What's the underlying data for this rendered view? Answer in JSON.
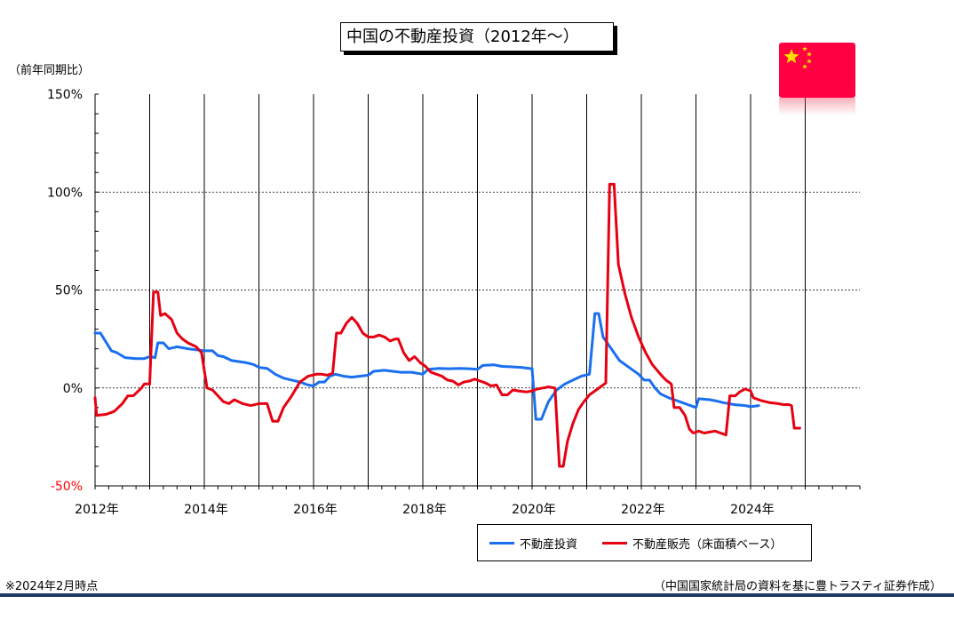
{
  "chart_data": {
    "type": "line",
    "title": "中国の不動産投資（2012年～）",
    "ylabel": "（前年同期比）",
    "ylim": [
      -50,
      150
    ],
    "yticks": [
      {
        "v": 150,
        "label": "150%"
      },
      {
        "v": 100,
        "label": "100%"
      },
      {
        "v": 50,
        "label": "50%"
      },
      {
        "v": 0,
        "label": "0%"
      },
      {
        "v": -50,
        "label": "-50%"
      }
    ],
    "negative_tick_color": "#ff0000",
    "xlim": [
      2012,
      2026
    ],
    "xticks": [
      {
        "v": 2012,
        "label": "2012年"
      },
      {
        "v": 2014,
        "label": "2014年"
      },
      {
        "v": 2016,
        "label": "2016年"
      },
      {
        "v": 2018,
        "label": "2018年"
      },
      {
        "v": 2020,
        "label": "2020年"
      },
      {
        "v": 2022,
        "label": "2022年"
      },
      {
        "v": 2024,
        "label": "2024年"
      }
    ],
    "grid": true,
    "legend_position": "bottom-right",
    "series": [
      {
        "name": "不動産投資",
        "color": "#1a6ff0",
        "points": [
          [
            2012.0,
            28
          ],
          [
            2012.1,
            28
          ],
          [
            2012.3,
            19
          ],
          [
            2012.4,
            18
          ],
          [
            2012.55,
            15.5
          ],
          [
            2012.75,
            15
          ],
          [
            2012.9,
            15
          ],
          [
            2013.0,
            16
          ],
          [
            2013.1,
            15.5
          ],
          [
            2013.15,
            23
          ],
          [
            2013.25,
            23
          ],
          [
            2013.35,
            20
          ],
          [
            2013.5,
            21
          ],
          [
            2013.7,
            20
          ],
          [
            2013.85,
            19.5
          ],
          [
            2014.0,
            19
          ],
          [
            2014.15,
            19
          ],
          [
            2014.25,
            16.5
          ],
          [
            2014.35,
            16
          ],
          [
            2014.5,
            14
          ],
          [
            2014.75,
            13
          ],
          [
            2014.9,
            12
          ],
          [
            2015.0,
            10.5
          ],
          [
            2015.15,
            10
          ],
          [
            2015.3,
            7
          ],
          [
            2015.45,
            5
          ],
          [
            2015.6,
            4
          ],
          [
            2015.75,
            3
          ],
          [
            2015.9,
            1.5
          ],
          [
            2016.0,
            1
          ],
          [
            2016.1,
            3
          ],
          [
            2016.2,
            3
          ],
          [
            2016.3,
            6
          ],
          [
            2016.4,
            7
          ],
          [
            2016.55,
            6
          ],
          [
            2016.7,
            5.5
          ],
          [
            2016.85,
            6
          ],
          [
            2017.0,
            6.5
          ],
          [
            2017.1,
            8.5
          ],
          [
            2017.3,
            9
          ],
          [
            2017.45,
            8.5
          ],
          [
            2017.6,
            8
          ],
          [
            2017.8,
            8
          ],
          [
            2018.0,
            7
          ],
          [
            2018.1,
            9.5
          ],
          [
            2018.3,
            10
          ],
          [
            2018.5,
            9.8
          ],
          [
            2018.7,
            10
          ],
          [
            2018.85,
            9.8
          ],
          [
            2019.0,
            9.5
          ],
          [
            2019.1,
            11.5
          ],
          [
            2019.3,
            11.8
          ],
          [
            2019.45,
            11
          ],
          [
            2019.6,
            10.8
          ],
          [
            2019.8,
            10.5
          ],
          [
            2019.95,
            10
          ],
          [
            2020.0,
            9.9
          ],
          [
            2020.07,
            -16
          ],
          [
            2020.17,
            -16
          ],
          [
            2020.3,
            -7
          ],
          [
            2020.45,
            -1
          ],
          [
            2020.6,
            2
          ],
          [
            2020.75,
            4
          ],
          [
            2020.9,
            6
          ],
          [
            2021.05,
            7
          ],
          [
            2021.15,
            38
          ],
          [
            2021.22,
            38
          ],
          [
            2021.3,
            26
          ],
          [
            2021.45,
            20
          ],
          [
            2021.6,
            14
          ],
          [
            2021.8,
            10
          ],
          [
            2021.95,
            7
          ],
          [
            2022.05,
            4
          ],
          [
            2022.15,
            4
          ],
          [
            2022.25,
            0
          ],
          [
            2022.35,
            -3
          ],
          [
            2022.5,
            -5
          ],
          [
            2022.7,
            -7
          ],
          [
            2022.9,
            -9
          ],
          [
            2023.0,
            -10
          ],
          [
            2023.05,
            -5.5
          ],
          [
            2023.25,
            -6
          ],
          [
            2023.35,
            -6.5
          ],
          [
            2023.5,
            -7.5
          ],
          [
            2023.7,
            -8.5
          ],
          [
            2023.9,
            -9
          ],
          [
            2024.0,
            -9.6
          ],
          [
            2024.15,
            -9
          ]
        ]
      },
      {
        "name": "不動産販売（床面積ベース）",
        "color": "#e60012",
        "points": [
          [
            2012.0,
            -5
          ],
          [
            2012.03,
            -14
          ],
          [
            2012.2,
            -13.5
          ],
          [
            2012.35,
            -12
          ],
          [
            2012.5,
            -8
          ],
          [
            2012.6,
            -4
          ],
          [
            2012.7,
            -4
          ],
          [
            2012.85,
            0
          ],
          [
            2012.9,
            2
          ],
          [
            2013.0,
            2
          ],
          [
            2013.07,
            49
          ],
          [
            2013.15,
            49
          ],
          [
            2013.2,
            37
          ],
          [
            2013.28,
            38
          ],
          [
            2013.4,
            35
          ],
          [
            2013.5,
            28
          ],
          [
            2013.6,
            25
          ],
          [
            2013.7,
            23
          ],
          [
            2013.85,
            21
          ],
          [
            2013.95,
            18
          ],
          [
            2014.05,
            0
          ],
          [
            2014.15,
            -1
          ],
          [
            2014.25,
            -4
          ],
          [
            2014.35,
            -7
          ],
          [
            2014.45,
            -8
          ],
          [
            2014.55,
            -6
          ],
          [
            2014.7,
            -8
          ],
          [
            2014.85,
            -9
          ],
          [
            2015.0,
            -8
          ],
          [
            2015.15,
            -8
          ],
          [
            2015.25,
            -17
          ],
          [
            2015.35,
            -17
          ],
          [
            2015.45,
            -10
          ],
          [
            2015.6,
            -4
          ],
          [
            2015.75,
            3
          ],
          [
            2015.9,
            6
          ],
          [
            2016.05,
            7
          ],
          [
            2016.15,
            7
          ],
          [
            2016.25,
            6.5
          ],
          [
            2016.35,
            7.5
          ],
          [
            2016.42,
            28
          ],
          [
            2016.5,
            28
          ],
          [
            2016.6,
            33
          ],
          [
            2016.7,
            36
          ],
          [
            2016.8,
            33
          ],
          [
            2016.9,
            28
          ],
          [
            2017.0,
            26
          ],
          [
            2017.1,
            26
          ],
          [
            2017.2,
            27
          ],
          [
            2017.3,
            26
          ],
          [
            2017.4,
            24
          ],
          [
            2017.5,
            25
          ],
          [
            2017.55,
            25
          ],
          [
            2017.65,
            18
          ],
          [
            2017.75,
            14
          ],
          [
            2017.85,
            16
          ],
          [
            2017.95,
            13
          ],
          [
            2018.05,
            11
          ],
          [
            2018.15,
            8
          ],
          [
            2018.25,
            7
          ],
          [
            2018.35,
            6
          ],
          [
            2018.45,
            4
          ],
          [
            2018.55,
            3.5
          ],
          [
            2018.65,
            1.5
          ],
          [
            2018.75,
            3
          ],
          [
            2018.85,
            3.5
          ],
          [
            2018.95,
            4.5
          ],
          [
            2019.05,
            3.5
          ],
          [
            2019.15,
            2.5
          ],
          [
            2019.25,
            1
          ],
          [
            2019.35,
            1.5
          ],
          [
            2019.45,
            -3.5
          ],
          [
            2019.55,
            -3.5
          ],
          [
            2019.65,
            -1
          ],
          [
            2019.75,
            -1.5
          ],
          [
            2019.9,
            -2
          ],
          [
            2020.0,
            -1.5
          ],
          [
            2020.1,
            -0.5
          ],
          [
            2020.2,
            0
          ],
          [
            2020.3,
            0.5
          ],
          [
            2020.42,
            0
          ],
          [
            2020.5,
            -40
          ],
          [
            2020.57,
            -40
          ],
          [
            2020.65,
            -27
          ],
          [
            2020.75,
            -18
          ],
          [
            2020.85,
            -11
          ],
          [
            2020.95,
            -7
          ],
          [
            2021.05,
            -3.5
          ],
          [
            2021.15,
            -1.5
          ],
          [
            2021.25,
            0.5
          ],
          [
            2021.35,
            2.5
          ],
          [
            2021.42,
            104
          ],
          [
            2021.5,
            104
          ],
          [
            2021.58,
            63
          ],
          [
            2021.7,
            48
          ],
          [
            2021.82,
            36
          ],
          [
            2021.95,
            26
          ],
          [
            2022.08,
            18
          ],
          [
            2022.2,
            12
          ],
          [
            2022.35,
            7
          ],
          [
            2022.45,
            4
          ],
          [
            2022.55,
            2
          ],
          [
            2022.6,
            -10
          ],
          [
            2022.7,
            -10
          ],
          [
            2022.8,
            -14
          ],
          [
            2022.88,
            -21
          ],
          [
            2022.95,
            -23
          ],
          [
            2023.05,
            -22
          ],
          [
            2023.15,
            -23
          ],
          [
            2023.25,
            -22.5
          ],
          [
            2023.35,
            -22
          ],
          [
            2023.45,
            -23
          ],
          [
            2023.55,
            -24
          ],
          [
            2023.62,
            -4
          ],
          [
            2023.72,
            -4
          ],
          [
            2023.8,
            -2
          ],
          [
            2023.9,
            -0.5
          ],
          [
            2024.0,
            -1.5
          ],
          [
            2024.05,
            -5
          ],
          [
            2024.2,
            -6.5
          ],
          [
            2024.35,
            -7.5
          ],
          [
            2024.5,
            -8
          ],
          [
            2024.6,
            -8.5
          ],
          [
            2024.7,
            -8.5
          ],
          [
            2024.75,
            -9
          ],
          [
            2024.8,
            -20.5
          ],
          [
            2024.9,
            -20.5
          ]
        ]
      }
    ]
  },
  "footnote_left": "※2024年2月時点",
  "footnote_right": "（中国国家統計局の資料を基に豊トラスティ証券作成）",
  "flag": {
    "icon": "china-flag-icon",
    "bg_color": "#ff0040",
    "star_color": "#ffde00"
  }
}
